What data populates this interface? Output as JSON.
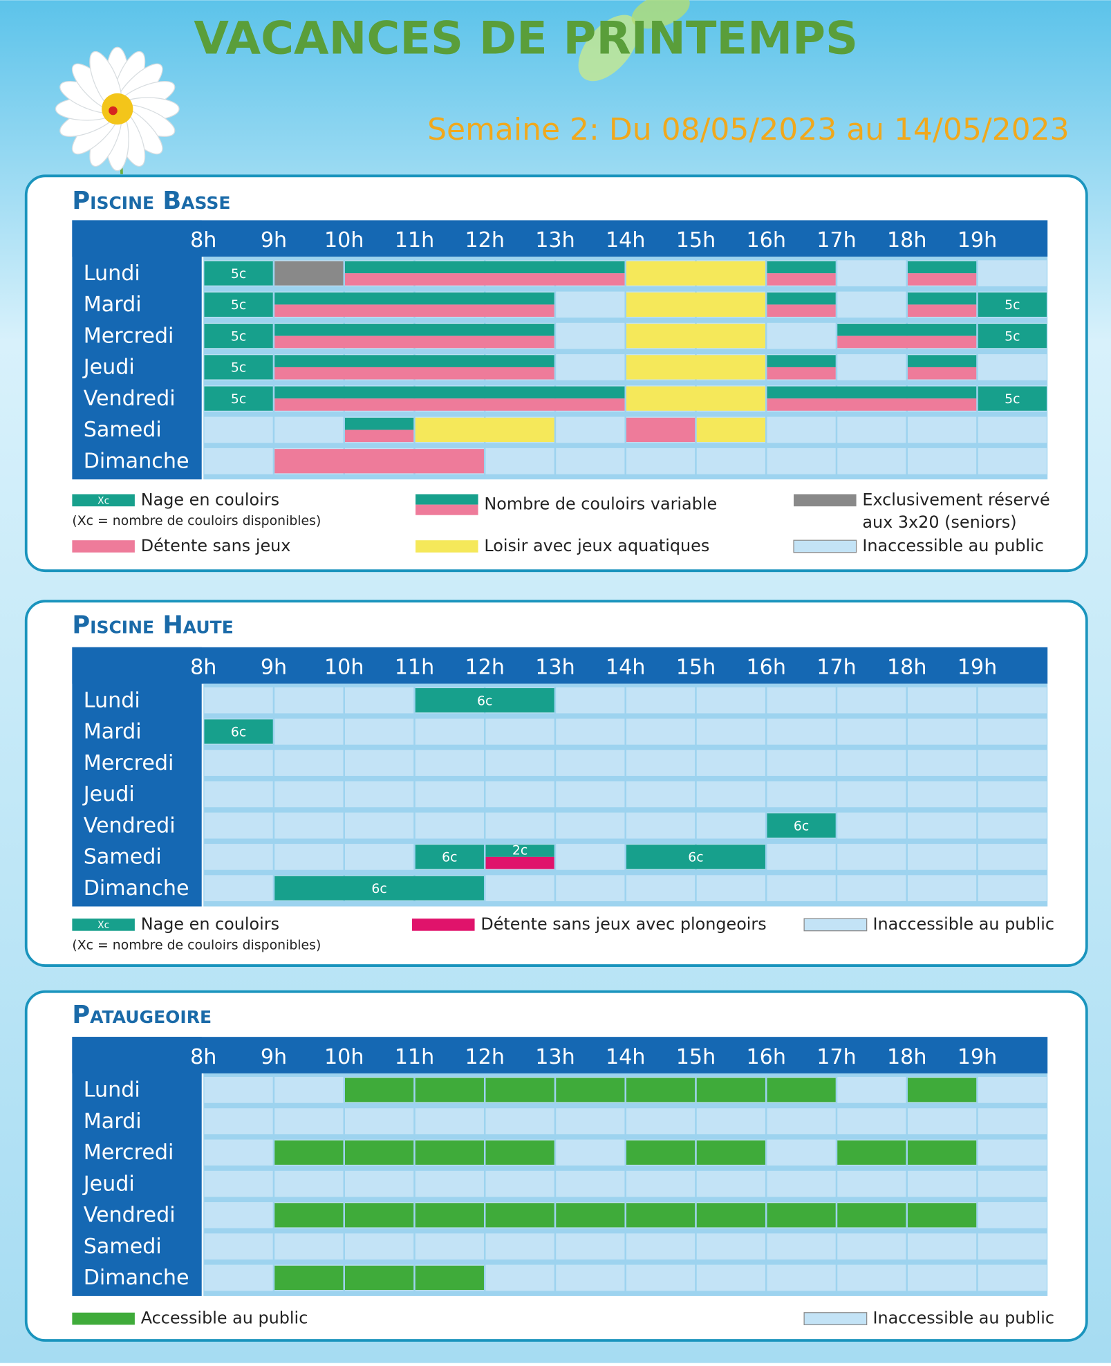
{
  "header": {
    "title": "VACANCES DE PRINTEMPS",
    "subtitle": "Semaine 2: Du 08/05/2023 au 14/05/2023"
  },
  "hours": [
    "8h",
    "9h",
    "10h",
    "11h",
    "12h",
    "13h",
    "14h",
    "15h",
    "16h",
    "17h",
    "18h",
    "19h"
  ],
  "days": [
    "Lundi",
    "Mardi",
    "Mercredi",
    "Jeudi",
    "Vendredi",
    "Samedi",
    "Dimanche"
  ],
  "types": {
    "lanes": {
      "color": "#17a08c"
    },
    "variable": {
      "color": "#17a08c",
      "color2": "#ee7b9a"
    },
    "seniors": {
      "color": "#898989"
    },
    "relax": {
      "color": "#ee7b9a"
    },
    "leisure": {
      "color": "#f5e85a"
    },
    "dive": {
      "color": "#e0136b"
    },
    "lanes_dive": {
      "color": "#17a08c",
      "color2": "#e0136b"
    },
    "public": {
      "color": "#3fab3a"
    },
    "closed": {
      "color": "#c3e3f6"
    }
  },
  "sections": [
    {
      "title": "Piscine Basse",
      "blocks": [
        {
          "day": 0,
          "start": 8,
          "end": 9,
          "type": "lanes",
          "label": "5c"
        },
        {
          "day": 0,
          "start": 9,
          "end": 10,
          "type": "seniors"
        },
        {
          "day": 0,
          "start": 10,
          "end": 14,
          "type": "variable"
        },
        {
          "day": 0,
          "start": 14,
          "end": 16,
          "type": "leisure"
        },
        {
          "day": 0,
          "start": 16,
          "end": 17,
          "type": "variable"
        },
        {
          "day": 0,
          "start": 18,
          "end": 19,
          "type": "variable"
        },
        {
          "day": 1,
          "start": 8,
          "end": 9,
          "type": "lanes",
          "label": "5c"
        },
        {
          "day": 1,
          "start": 9,
          "end": 13,
          "type": "variable"
        },
        {
          "day": 1,
          "start": 14,
          "end": 16,
          "type": "leisure"
        },
        {
          "day": 1,
          "start": 16,
          "end": 17,
          "type": "variable"
        },
        {
          "day": 1,
          "start": 18,
          "end": 19,
          "type": "variable"
        },
        {
          "day": 1,
          "start": 19,
          "end": 20,
          "type": "lanes",
          "label": "5c"
        },
        {
          "day": 2,
          "start": 8,
          "end": 9,
          "type": "lanes",
          "label": "5c"
        },
        {
          "day": 2,
          "start": 9,
          "end": 13,
          "type": "variable"
        },
        {
          "day": 2,
          "start": 14,
          "end": 16,
          "type": "leisure"
        },
        {
          "day": 2,
          "start": 17,
          "end": 19,
          "type": "variable"
        },
        {
          "day": 2,
          "start": 19,
          "end": 20,
          "type": "lanes",
          "label": "5c"
        },
        {
          "day": 3,
          "start": 8,
          "end": 9,
          "type": "lanes",
          "label": "5c"
        },
        {
          "day": 3,
          "start": 9,
          "end": 13,
          "type": "variable"
        },
        {
          "day": 3,
          "start": 14,
          "end": 16,
          "type": "leisure"
        },
        {
          "day": 3,
          "start": 16,
          "end": 17,
          "type": "variable"
        },
        {
          "day": 3,
          "start": 18,
          "end": 19,
          "type": "variable"
        },
        {
          "day": 4,
          "start": 8,
          "end": 9,
          "type": "lanes",
          "label": "5c"
        },
        {
          "day": 4,
          "start": 9,
          "end": 14,
          "type": "variable"
        },
        {
          "day": 4,
          "start": 14,
          "end": 16,
          "type": "leisure"
        },
        {
          "day": 4,
          "start": 16,
          "end": 19,
          "type": "variable"
        },
        {
          "day": 4,
          "start": 19,
          "end": 20,
          "type": "lanes",
          "label": "5c"
        },
        {
          "day": 5,
          "start": 10,
          "end": 11,
          "type": "variable"
        },
        {
          "day": 5,
          "start": 11,
          "end": 13,
          "type": "leisure"
        },
        {
          "day": 5,
          "start": 14,
          "end": 15,
          "type": "relax"
        },
        {
          "day": 5,
          "start": 15,
          "end": 16,
          "type": "leisure"
        },
        {
          "day": 6,
          "start": 9,
          "end": 12,
          "type": "relax"
        }
      ],
      "legend": [
        {
          "type": "lanes",
          "swatch": "Xc",
          "lines": [
            "Nage en couloirs"
          ],
          "note": "(Xc = nombre de couloirs disponibles)"
        },
        {
          "type": "relax",
          "lines": [
            "Détente sans jeux"
          ]
        },
        {
          "type": "variable",
          "lines": [
            "Nombre de couloirs variable"
          ]
        },
        {
          "type": "leisure",
          "lines": [
            "Loisir avec jeux aquatiques"
          ]
        },
        {
          "type": "seniors",
          "lines": [
            "Exclusivement réservé",
            "aux 3x20 (seniors)"
          ]
        },
        {
          "type": "closed",
          "lines": [
            "Inaccessible au public"
          ]
        }
      ]
    },
    {
      "title": "Piscine Haute",
      "blocks": [
        {
          "day": 0,
          "start": 11,
          "end": 13,
          "type": "lanes",
          "label": "6c"
        },
        {
          "day": 1,
          "start": 8,
          "end": 9,
          "type": "lanes",
          "label": "6c"
        },
        {
          "day": 4,
          "start": 16,
          "end": 17,
          "type": "lanes",
          "label": "6c"
        },
        {
          "day": 5,
          "start": 11,
          "end": 12,
          "type": "lanes",
          "label": "6c"
        },
        {
          "day": 5,
          "start": 12,
          "end": 13,
          "type": "lanes_dive",
          "label": "2c"
        },
        {
          "day": 5,
          "start": 14,
          "end": 16,
          "type": "lanes",
          "label": "6c"
        },
        {
          "day": 6,
          "start": 9,
          "end": 12,
          "type": "lanes",
          "label": "6c"
        }
      ],
      "legend": [
        {
          "type": "lanes",
          "swatch": "Xc",
          "lines": [
            "Nage en couloirs"
          ],
          "note": "(Xc = nombre de couloirs disponibles)"
        },
        {
          "type": "dive",
          "lines": [
            "Détente sans jeux avec plongeoirs"
          ]
        },
        {
          "type": "closed",
          "lines": [
            "Inaccessible au public"
          ]
        }
      ]
    },
    {
      "title": "Pataugeoire",
      "blocks": [
        {
          "day": 0,
          "start": 10,
          "end": 17,
          "type": "public"
        },
        {
          "day": 0,
          "start": 18,
          "end": 19,
          "type": "public"
        },
        {
          "day": 2,
          "start": 9,
          "end": 13,
          "type": "public"
        },
        {
          "day": 2,
          "start": 14,
          "end": 16,
          "type": "public"
        },
        {
          "day": 2,
          "start": 17,
          "end": 19,
          "type": "public"
        },
        {
          "day": 4,
          "start": 9,
          "end": 19,
          "type": "public"
        },
        {
          "day": 6,
          "start": 9,
          "end": 12,
          "type": "public"
        }
      ],
      "legend": [
        {
          "type": "public",
          "lines": [
            "Accessible au public"
          ]
        },
        {
          "type": "closed",
          "lines": [
            "Inaccessible au public"
          ]
        }
      ]
    }
  ]
}
